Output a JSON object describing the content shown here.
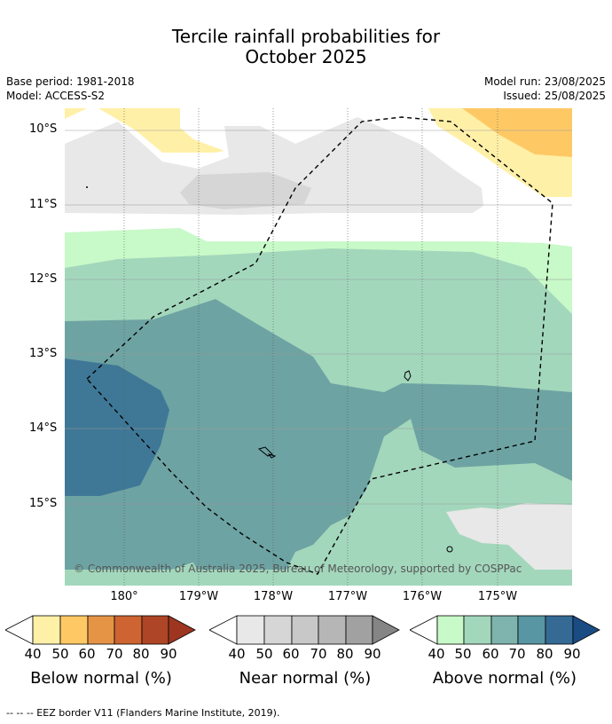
{
  "title_line1": "Tercile rainfall probabilities for",
  "title_line2": "October 2025",
  "base_period": "Base period: 1981-2018",
  "model": "Model: ACCESS-S2",
  "model_run": "Model run: 23/08/2025",
  "issued": "Issued: 25/08/2025",
  "lat_labels": [
    "10°S",
    "11°S",
    "12°S",
    "13°S",
    "14°S",
    "15°S"
  ],
  "lon_labels": [
    "180°",
    "179°W",
    "178°W",
    "177°W",
    "176°W",
    "175°W"
  ],
  "copyright": "© Commonwealth of Australia 2025, Bureau of Meteorology, supported by COSPPac",
  "legends": [
    {
      "label": "Below normal (%)",
      "ticks": [
        "40",
        "50",
        "60",
        "70",
        "80",
        "90"
      ],
      "colors": [
        "#fff0a8",
        "#fec965",
        "#e59446",
        "#cd6432",
        "#ae4526",
        "#9e3520"
      ]
    },
    {
      "label": "Near normal (%)",
      "ticks": [
        "40",
        "50",
        "60",
        "70",
        "80",
        "90"
      ],
      "colors": [
        "#e8e8e8",
        "#d6d6d6",
        "#c8c8c8",
        "#b6b6b6",
        "#a1a1a1",
        "#858585"
      ]
    },
    {
      "label": "Above normal (%)",
      "ticks": [
        "40",
        "50",
        "60",
        "70",
        "80",
        "90"
      ],
      "colors": [
        "#c8f9c8",
        "#a3d7bc",
        "#7fb3ad",
        "#5896a4",
        "#356a95",
        "#1a4c84"
      ]
    }
  ],
  "footer": "-- -- -- EEZ border V11 (Flanders Marine Institute, 2019)."
}
